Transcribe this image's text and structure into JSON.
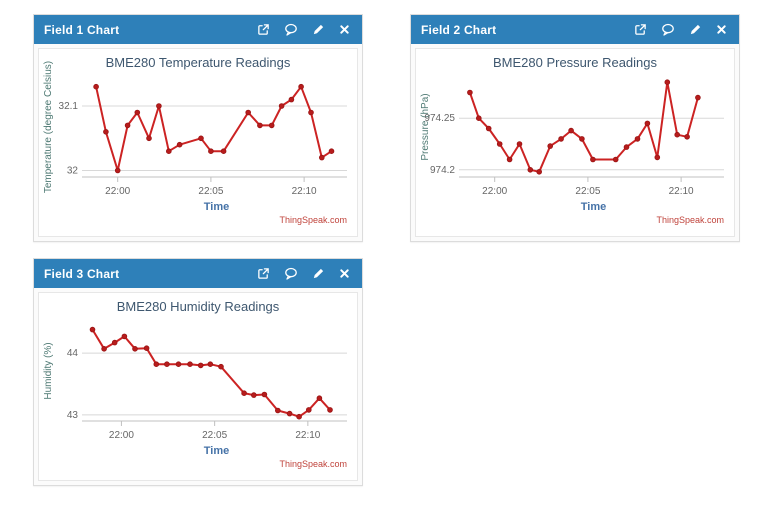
{
  "colors": {
    "header_bg": "#2e80b9",
    "header_text": "#ffffff",
    "line": "#cc2323",
    "marker_fill": "#b71c1c",
    "marker_stroke": "#991414",
    "grid": "#d8d8d8",
    "axis_line": "#c0c0c0",
    "tick_text": "#666666",
    "title_text": "#3e576f",
    "y_title_text": "#4f7a74",
    "x_title_text": "#4572a7",
    "watermark_text": "#c0443c"
  },
  "panels": [
    {
      "title": "Field 1 Chart",
      "icons": [
        "external-link",
        "comment",
        "edit-pencil",
        "close"
      ]
    },
    {
      "title": "Field 2 Chart",
      "icons": [
        "external-link",
        "comment",
        "edit-pencil",
        "close"
      ]
    },
    {
      "title": "Field 3 Chart",
      "icons": [
        "external-link",
        "comment",
        "edit-pencil",
        "close"
      ]
    }
  ],
  "chart_data": [
    {
      "type": "line",
      "title": "BME280 Temperature Readings",
      "xlabel": "Time",
      "ylabel": "Temperature (degree Celsius)",
      "watermark": "ThingSpeak.com",
      "grid": true,
      "legend": "none",
      "xlim": [
        -1.7,
        12.3
      ],
      "ylim": [
        31.99,
        32.145
      ],
      "xticks": [
        {
          "t": 0,
          "label": "22:00"
        },
        {
          "t": 5,
          "label": "22:05"
        },
        {
          "t": 10,
          "label": "22:10"
        }
      ],
      "yticks": [
        {
          "value": 32.0,
          "label": "32"
        },
        {
          "value": 32.1,
          "label": "32.1"
        }
      ],
      "points": [
        [
          -1.16,
          32.13
        ],
        [
          -0.63,
          32.06
        ],
        [
          0,
          32.0
        ],
        [
          0.53,
          32.07
        ],
        [
          1.05,
          32.09
        ],
        [
          1.68,
          32.05
        ],
        [
          2.21,
          32.1
        ],
        [
          2.74,
          32.03
        ],
        [
          3.32,
          32.04
        ],
        [
          4.47,
          32.05
        ],
        [
          5.0,
          32.03
        ],
        [
          5.68,
          32.03
        ],
        [
          7.0,
          32.09
        ],
        [
          7.63,
          32.07
        ],
        [
          8.26,
          32.07
        ],
        [
          8.79,
          32.1
        ],
        [
          9.32,
          32.11
        ],
        [
          9.84,
          32.13
        ],
        [
          10.37,
          32.09
        ],
        [
          10.95,
          32.02
        ],
        [
          11.47,
          32.03
        ]
      ]
    },
    {
      "type": "line",
      "title": "BME280 Pressure Readings",
      "xlabel": "Time",
      "ylabel": "Pressure (hPa)",
      "watermark": "ThingSpeak.com",
      "grid": true,
      "legend": "none",
      "xlim": [
        -1.7,
        12.3
      ],
      "ylim": [
        974.193,
        974.29
      ],
      "xticks": [
        {
          "t": 0,
          "label": "22:00"
        },
        {
          "t": 5,
          "label": "22:05"
        },
        {
          "t": 10,
          "label": "22:10"
        }
      ],
      "yticks": [
        {
          "value": 974.2,
          "label": "974.2"
        },
        {
          "value": 974.25,
          "label": "974.25"
        }
      ],
      "points": [
        [
          -1.33,
          974.275
        ],
        [
          -0.85,
          974.25
        ],
        [
          -0.32,
          974.24
        ],
        [
          0.27,
          974.225
        ],
        [
          0.8,
          974.21
        ],
        [
          1.33,
          974.225
        ],
        [
          1.91,
          974.2
        ],
        [
          2.39,
          974.198
        ],
        [
          2.98,
          974.223
        ],
        [
          3.56,
          974.23
        ],
        [
          4.1,
          974.238
        ],
        [
          4.68,
          974.23
        ],
        [
          5.27,
          974.21
        ],
        [
          6.49,
          974.21
        ],
        [
          7.07,
          974.222
        ],
        [
          7.66,
          974.23
        ],
        [
          8.19,
          974.245
        ],
        [
          8.72,
          974.212
        ],
        [
          9.26,
          974.285
        ],
        [
          9.79,
          974.234
        ],
        [
          10.32,
          974.232
        ],
        [
          10.9,
          974.27
        ]
      ]
    },
    {
      "type": "line",
      "title": "BME280 Humidity Readings",
      "xlabel": "Time",
      "ylabel": "Humidity (%)",
      "watermark": "ThingSpeak.com",
      "grid": true,
      "legend": "none",
      "xlim": [
        -1.9,
        12.1
      ],
      "ylim": [
        42.9,
        44.52
      ],
      "xticks": [
        {
          "t": 0,
          "label": "22:00"
        },
        {
          "t": 5,
          "label": "22:05"
        },
        {
          "t": 10,
          "label": "22:10"
        }
      ],
      "yticks": [
        {
          "value": 43,
          "label": "43"
        },
        {
          "value": 44,
          "label": "44"
        }
      ],
      "points": [
        [
          -1.55,
          44.38
        ],
        [
          -0.93,
          44.07
        ],
        [
          -0.36,
          44.17
        ],
        [
          0.16,
          44.27
        ],
        [
          0.73,
          44.07
        ],
        [
          1.35,
          44.08
        ],
        [
          1.87,
          43.82
        ],
        [
          2.44,
          43.82
        ],
        [
          3.06,
          43.82
        ],
        [
          3.68,
          43.82
        ],
        [
          4.25,
          43.8
        ],
        [
          4.77,
          43.82
        ],
        [
          5.34,
          43.78
        ],
        [
          6.58,
          43.35
        ],
        [
          7.1,
          43.32
        ],
        [
          7.67,
          43.33
        ],
        [
          8.39,
          43.07
        ],
        [
          9.02,
          43.02
        ],
        [
          9.53,
          42.97
        ],
        [
          10.05,
          43.08
        ],
        [
          10.62,
          43.27
        ],
        [
          11.19,
          43.08
        ]
      ]
    }
  ]
}
